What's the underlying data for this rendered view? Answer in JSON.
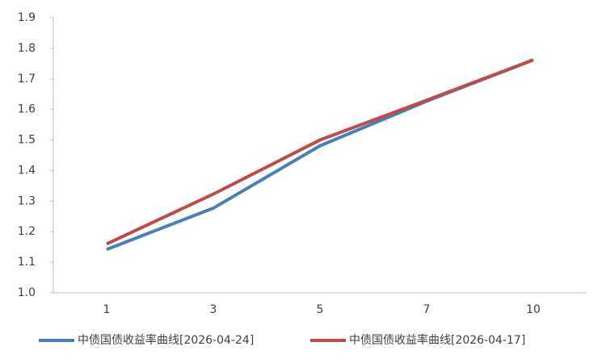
{
  "chart_data": {
    "type": "line",
    "categories": [
      "1",
      "3",
      "5",
      "7",
      "10"
    ],
    "series": [
      {
        "name": "中债国债收益率曲线[2026-04-24]",
        "color": "#4a7ebb",
        "values": [
          1.142,
          1.277,
          1.481,
          1.627,
          1.762
        ]
      },
      {
        "name": "中债国债收益率曲线[2026-04-17]",
        "color": "#be4b48",
        "values": [
          1.16,
          1.323,
          1.5,
          1.63,
          1.762
        ]
      }
    ],
    "ylim": [
      1,
      1.9
    ],
    "yticks": [
      {
        "value": 1,
        "label": "1.0"
      },
      1.1,
      1.2,
      1.3,
      1.4,
      1.5,
      1.6,
      1.7,
      1.8,
      1.9
    ],
    "grid": false,
    "legend": "bottom"
  }
}
